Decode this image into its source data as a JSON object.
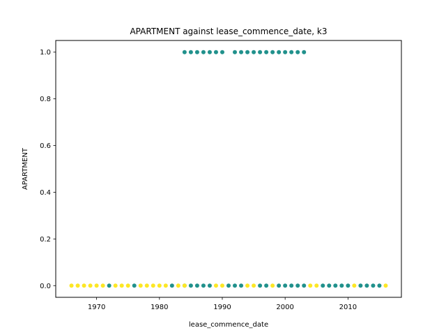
{
  "chart_data": {
    "type": "scatter",
    "title": "APARTMENT against lease_commence_date, k3",
    "xlabel": "lease_commence_date",
    "ylabel": "APARTMENT",
    "xlim": [
      1963.5,
      2018.5
    ],
    "ylim": [
      -0.05,
      1.05
    ],
    "xticks": [
      1970,
      1980,
      1990,
      2000,
      2010
    ],
    "xtick_labels": [
      "1970",
      "1980",
      "1990",
      "2000",
      "2010"
    ],
    "yticks": [
      0.0,
      0.2,
      0.4,
      0.6,
      0.8,
      1.0
    ],
    "ytick_labels": [
      "0.0",
      "0.2",
      "0.4",
      "0.6",
      "0.8",
      "1.0"
    ],
    "grid": false,
    "series": [
      {
        "color": "#21918c",
        "points": [
          [
            1984,
            1
          ],
          [
            1985,
            1
          ],
          [
            1986,
            1
          ],
          [
            1987,
            1
          ],
          [
            1988,
            1
          ],
          [
            1989,
            1
          ],
          [
            1990,
            1
          ],
          [
            1992,
            1
          ],
          [
            1993,
            1
          ],
          [
            1994,
            1
          ],
          [
            1995,
            1
          ],
          [
            1996,
            1
          ],
          [
            1997,
            1
          ],
          [
            1998,
            1
          ],
          [
            1999,
            1
          ],
          [
            2000,
            1
          ],
          [
            2001,
            1
          ],
          [
            2002,
            1
          ],
          [
            2003,
            1
          ],
          [
            1972,
            0
          ],
          [
            1976,
            0
          ],
          [
            1982,
            0
          ],
          [
            1984,
            0
          ],
          [
            1985,
            0
          ],
          [
            1986,
            0
          ],
          [
            1987,
            0
          ],
          [
            1988,
            0
          ],
          [
            1991,
            0
          ],
          [
            1992,
            0
          ],
          [
            1993,
            0
          ],
          [
            1996,
            0
          ],
          [
            1997,
            0
          ],
          [
            1999,
            0
          ],
          [
            2000,
            0
          ],
          [
            2001,
            0
          ],
          [
            2002,
            0
          ],
          [
            2003,
            0
          ],
          [
            2006,
            0
          ],
          [
            2007,
            0
          ],
          [
            2008,
            0
          ],
          [
            2009,
            0
          ],
          [
            2010,
            0
          ],
          [
            2012,
            0
          ],
          [
            2013,
            0
          ],
          [
            2014,
            0
          ],
          [
            2015,
            0
          ]
        ]
      },
      {
        "color": "#fde725",
        "points": [
          [
            1966,
            0
          ],
          [
            1967,
            0
          ],
          [
            1968,
            0
          ],
          [
            1969,
            0
          ],
          [
            1970,
            0
          ],
          [
            1971,
            0
          ],
          [
            1973,
            0
          ],
          [
            1974,
            0
          ],
          [
            1975,
            0
          ],
          [
            1977,
            0
          ],
          [
            1978,
            0
          ],
          [
            1979,
            0
          ],
          [
            1980,
            0
          ],
          [
            1981,
            0
          ],
          [
            1983,
            0
          ],
          [
            1984,
            0
          ],
          [
            1989,
            0
          ],
          [
            1990,
            0
          ],
          [
            1994,
            0
          ],
          [
            1995,
            0
          ],
          [
            1998,
            0
          ],
          [
            2004,
            0
          ],
          [
            2005,
            0
          ],
          [
            2011,
            0
          ],
          [
            2016,
            0
          ]
        ]
      }
    ]
  }
}
